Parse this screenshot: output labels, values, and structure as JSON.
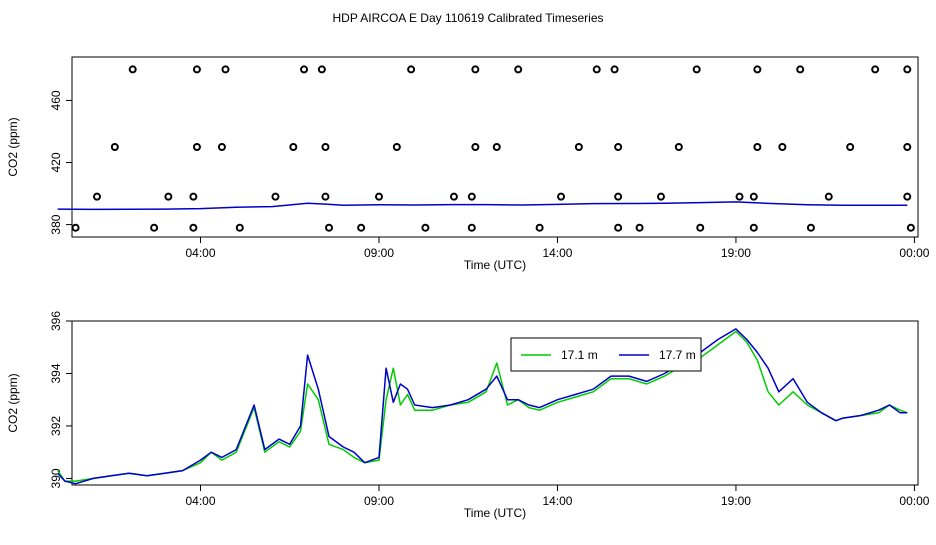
{
  "title": "HDP AIRCOA E  Day 110619  Calibrated Timeseries",
  "chart_data": [
    {
      "type": "scatter",
      "xlabel": "Time (UTC)",
      "ylabel": "CO2 (ppm)",
      "xlim": [
        0,
        24
      ],
      "ylim": [
        372,
        488
      ],
      "x_ticks": [
        {
          "value": 4,
          "label": "04:00"
        },
        {
          "value": 9,
          "label": "09:00"
        },
        {
          "value": 14,
          "label": "14:00"
        },
        {
          "value": 19,
          "label": "19:00"
        },
        {
          "value": 24,
          "label": "00:00"
        }
      ],
      "y_ticks": [
        {
          "value": 380,
          "label": "380"
        },
        {
          "value": 420,
          "label": "420"
        },
        {
          "value": 460,
          "label": "460"
        }
      ],
      "points": [
        [
          2.1,
          480
        ],
        [
          3.9,
          480
        ],
        [
          4.7,
          480
        ],
        [
          6.9,
          480
        ],
        [
          7.4,
          480
        ],
        [
          9.9,
          480
        ],
        [
          11.7,
          480
        ],
        [
          12.9,
          480
        ],
        [
          15.1,
          480
        ],
        [
          15.6,
          480
        ],
        [
          17.9,
          480
        ],
        [
          19.6,
          480
        ],
        [
          20.8,
          480
        ],
        [
          22.9,
          480
        ],
        [
          23.8,
          480
        ],
        [
          1.6,
          430
        ],
        [
          3.9,
          430
        ],
        [
          4.6,
          430
        ],
        [
          6.6,
          430
        ],
        [
          7.5,
          430
        ],
        [
          9.5,
          430
        ],
        [
          11.7,
          430
        ],
        [
          12.3,
          430
        ],
        [
          14.6,
          430
        ],
        [
          15.7,
          430
        ],
        [
          17.4,
          430
        ],
        [
          19.6,
          430
        ],
        [
          20.3,
          430
        ],
        [
          22.2,
          430
        ],
        [
          23.8,
          430
        ],
        [
          1.1,
          398
        ],
        [
          3.1,
          398
        ],
        [
          3.8,
          398
        ],
        [
          6.1,
          398
        ],
        [
          7.5,
          398
        ],
        [
          9,
          398
        ],
        [
          11.1,
          398
        ],
        [
          11.6,
          398
        ],
        [
          14.1,
          398
        ],
        [
          15.7,
          398
        ],
        [
          16.9,
          398
        ],
        [
          19.1,
          398
        ],
        [
          19.5,
          398
        ],
        [
          21.6,
          398
        ],
        [
          23.8,
          398
        ],
        [
          0.5,
          378
        ],
        [
          2.7,
          378
        ],
        [
          3.8,
          378
        ],
        [
          5.1,
          378
        ],
        [
          7.6,
          378
        ],
        [
          8.5,
          378
        ],
        [
          10.3,
          378
        ],
        [
          11.6,
          378
        ],
        [
          13.5,
          378
        ],
        [
          15.7,
          378
        ],
        [
          16.3,
          378
        ],
        [
          18,
          378
        ],
        [
          19.5,
          378
        ],
        [
          21.1,
          378
        ],
        [
          23.9,
          378
        ]
      ],
      "series": [
        {
          "color": "#0000cc",
          "x": [
            0,
            1,
            2,
            3,
            4,
            5,
            6,
            7,
            7.5,
            8,
            9,
            10,
            11,
            12,
            13,
            14,
            15,
            16,
            17,
            18,
            19,
            20,
            21,
            22,
            23,
            23.8
          ],
          "values": [
            390,
            389.8,
            389.9,
            390,
            390.3,
            391.2,
            391.6,
            393.8,
            393.2,
            392.4,
            392.8,
            392.6,
            392.9,
            392.9,
            392.6,
            393,
            393.5,
            393.6,
            393.7,
            394.2,
            394.6,
            393.6,
            392.8,
            392.4,
            392.5,
            392.5
          ]
        }
      ]
    },
    {
      "type": "line",
      "xlabel": "Time (UTC)",
      "ylabel": "CO2 (ppm)",
      "xlim": [
        0,
        24
      ],
      "ylim": [
        389.75,
        396
      ],
      "x_ticks": [
        {
          "value": 4,
          "label": "04:00"
        },
        {
          "value": 9,
          "label": "09:00"
        },
        {
          "value": 14,
          "label": "14:00"
        },
        {
          "value": 19,
          "label": "19:00"
        },
        {
          "value": 24,
          "label": "00:00"
        }
      ],
      "y_ticks": [
        {
          "value": 390,
          "label": "390"
        },
        {
          "value": 392,
          "label": "392"
        },
        {
          "value": 394,
          "label": "394"
        },
        {
          "value": 396,
          "label": "396"
        }
      ],
      "legend": {
        "position": "top-center"
      },
      "series": [
        {
          "name": "17.1 m",
          "color": "#00cc00",
          "x": [
            0,
            0.2,
            0.5,
            1,
            1.5,
            2,
            2.5,
            3,
            3.5,
            4,
            4.3,
            4.6,
            5,
            5.5,
            5.8,
            6.2,
            6.5,
            6.8,
            7,
            7.3,
            7.6,
            8,
            8.3,
            8.6,
            9,
            9.2,
            9.4,
            9.6,
            9.8,
            10,
            10.5,
            11,
            11.5,
            12,
            12.3,
            12.6,
            12.9,
            13.2,
            13.5,
            14,
            14.5,
            15,
            15.5,
            16,
            16.5,
            17,
            17.5,
            18,
            18.5,
            19,
            19.3,
            19.6,
            19.9,
            20.2,
            20.6,
            21,
            21.4,
            21.8,
            22,
            22.5,
            23,
            23.3,
            23.6,
            23.8
          ],
          "values": [
            390.3,
            389.9,
            389.9,
            390,
            390.1,
            390.2,
            390.1,
            390.2,
            390.3,
            390.6,
            391,
            390.7,
            391,
            392.7,
            391,
            391.4,
            391.2,
            391.8,
            393.6,
            393,
            391.3,
            391.1,
            390.8,
            390.6,
            390.7,
            393,
            394.2,
            392.8,
            393.2,
            392.6,
            392.6,
            392.8,
            392.9,
            393.3,
            394.4,
            392.8,
            393,
            392.7,
            392.6,
            392.9,
            393.1,
            393.3,
            393.8,
            393.8,
            393.6,
            393.9,
            394.3,
            394.6,
            395.1,
            395.6,
            395.2,
            394.5,
            393.3,
            392.8,
            393.3,
            392.8,
            392.5,
            392.2,
            392.3,
            392.4,
            392.5,
            392.8,
            392.6,
            392.5
          ]
        },
        {
          "name": "17.7 m",
          "color": "#0000cc",
          "x": [
            0,
            0.2,
            0.5,
            1,
            1.5,
            2,
            2.5,
            3,
            3.5,
            4,
            4.3,
            4.6,
            5,
            5.5,
            5.8,
            6.2,
            6.5,
            6.8,
            7,
            7.3,
            7.6,
            8,
            8.3,
            8.6,
            9,
            9.2,
            9.4,
            9.6,
            9.8,
            10,
            10.5,
            11,
            11.5,
            12,
            12.3,
            12.6,
            12.9,
            13.2,
            13.5,
            14,
            14.5,
            15,
            15.5,
            16,
            16.5,
            17,
            17.5,
            18,
            18.5,
            19,
            19.3,
            19.6,
            19.9,
            20.2,
            20.6,
            21,
            21.4,
            21.8,
            22,
            22.5,
            23,
            23.3,
            23.6,
            23.8
          ],
          "values": [
            390.2,
            389.9,
            389.8,
            390,
            390.1,
            390.2,
            390.1,
            390.2,
            390.3,
            390.7,
            391,
            390.8,
            391.1,
            392.8,
            391.1,
            391.5,
            391.3,
            392,
            394.7,
            393.4,
            391.6,
            391.2,
            391,
            390.6,
            390.8,
            394.2,
            392.9,
            393.6,
            393.4,
            392.8,
            392.7,
            392.8,
            393,
            393.4,
            393.9,
            393,
            393,
            392.8,
            392.7,
            393,
            393.2,
            393.4,
            393.9,
            393.9,
            393.7,
            394,
            394.4,
            394.8,
            395.3,
            395.7,
            395.3,
            394.8,
            394.2,
            393.3,
            393.8,
            392.9,
            392.5,
            392.2,
            392.3,
            392.4,
            392.6,
            392.8,
            392.5,
            392.5
          ]
        }
      ]
    }
  ]
}
